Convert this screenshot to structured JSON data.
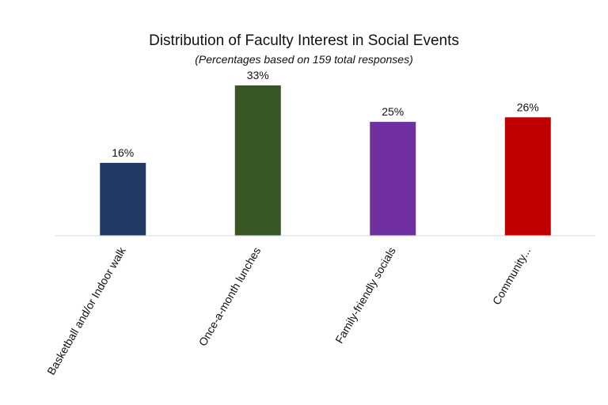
{
  "chart_data": {
    "type": "bar",
    "title": "Distribution of Faculty Interest in Social Events",
    "subtitle": "(Percentages based on 159 total responses)",
    "categories": [
      "Basketball and/or Indoor walk",
      "Once-a-month lunches",
      "Family-friendly socials",
      "Community..."
    ],
    "values": [
      16,
      33,
      25,
      26
    ],
    "data_labels": [
      "16%",
      "33%",
      "25%",
      "26%"
    ],
    "colors": [
      "#1f3864",
      "#375623",
      "#7030a0",
      "#c00000"
    ],
    "ylim": [
      0,
      36
    ],
    "grid": false,
    "legend": "none"
  }
}
